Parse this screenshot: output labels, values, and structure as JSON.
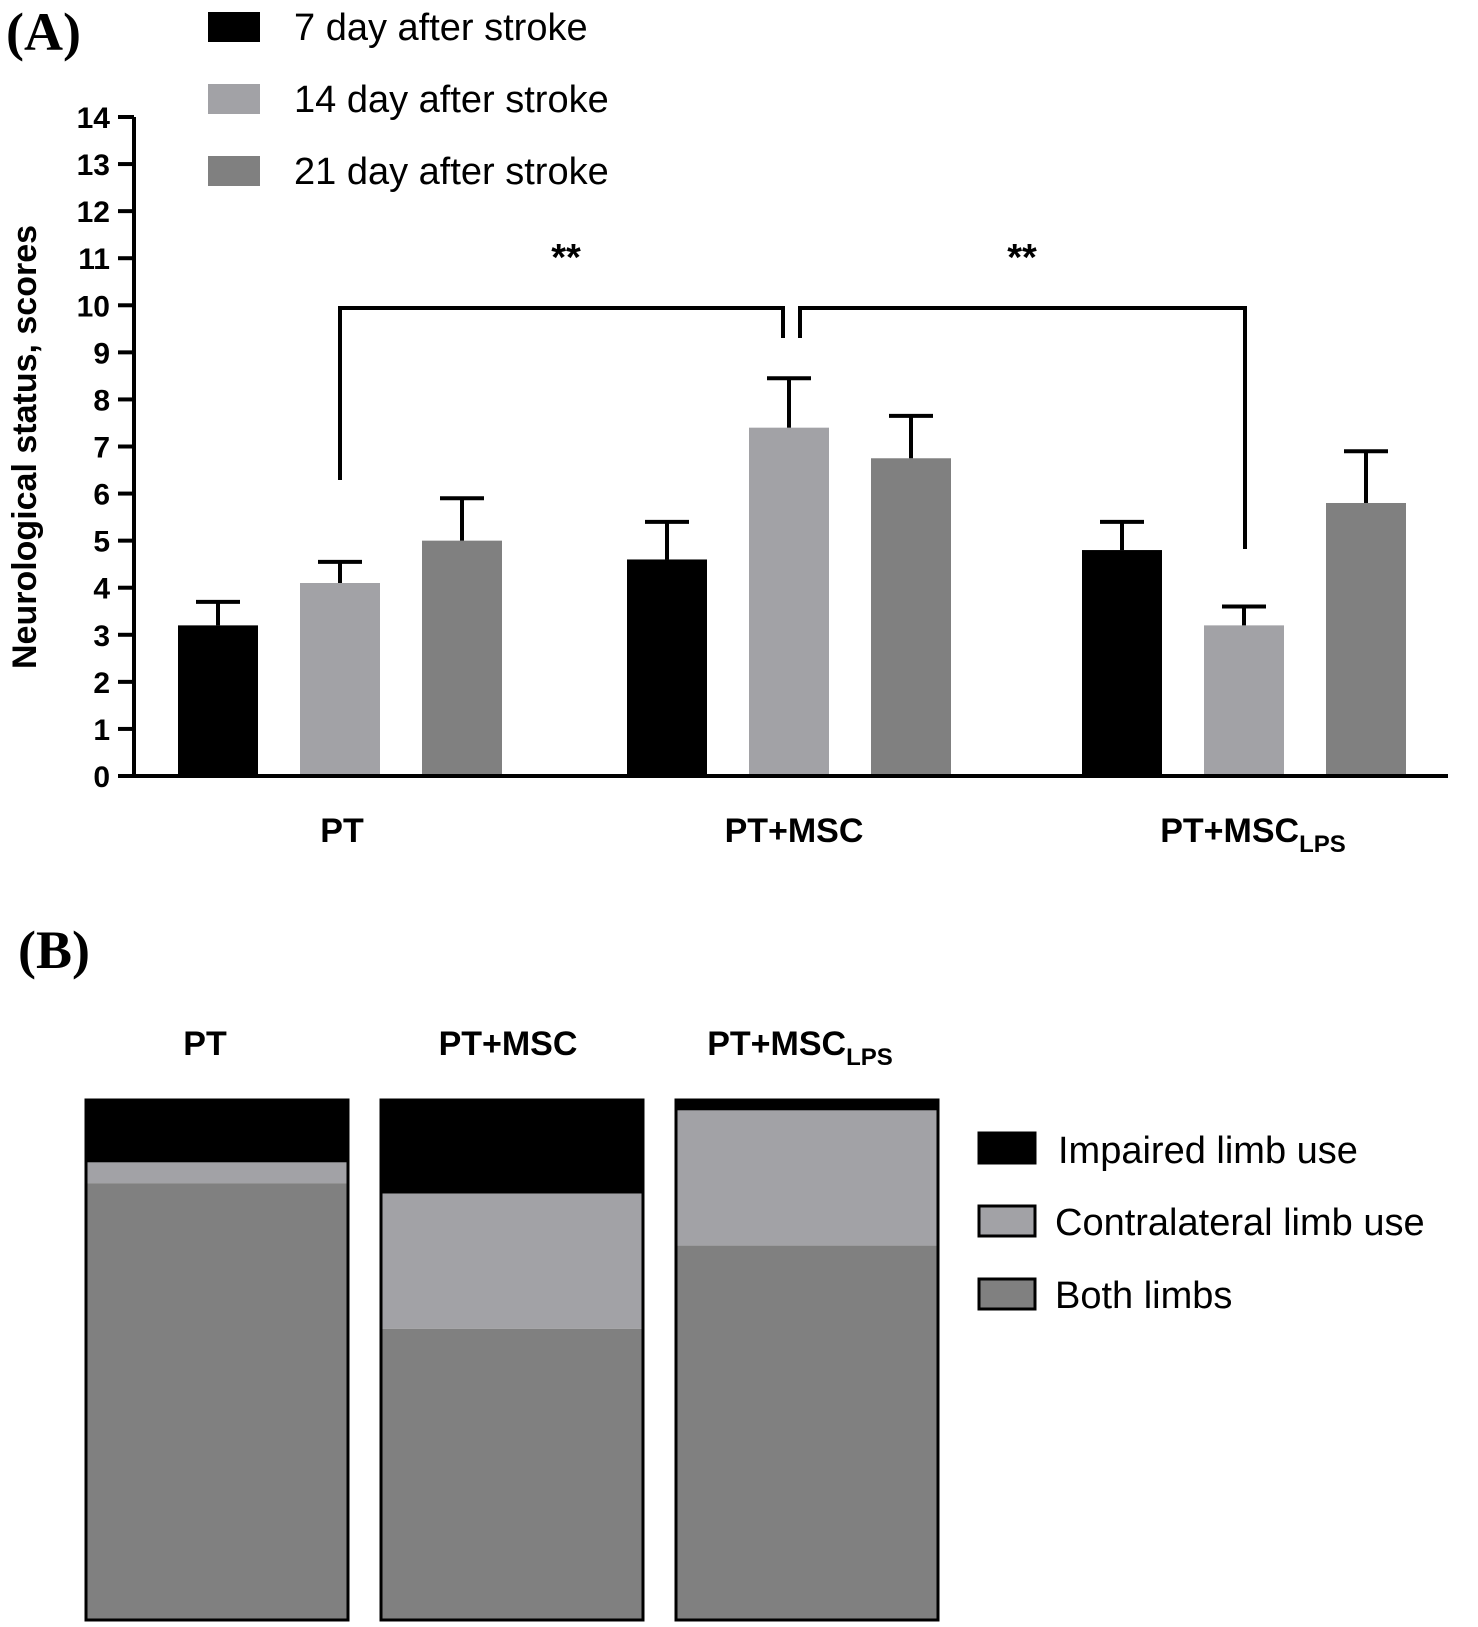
{
  "panel_a_label": "(A)",
  "panel_b_label": "(B)",
  "colors": {
    "day7": "#000000",
    "day14": "#a2a2a6",
    "day21": "#808080",
    "impaired": "#000000",
    "contralateral": "#a2a2a6",
    "both": "#808080"
  },
  "chart_data": [
    {
      "type": "bar",
      "ylabel": "Neurological status, scores",
      "xlabel": "",
      "ylim": [
        0,
        14
      ],
      "yticks": [
        "0",
        "1",
        "2",
        "3",
        "4",
        "5",
        "6",
        "7",
        "8",
        "9",
        "10",
        "11",
        "12",
        "13",
        "14"
      ],
      "categories": [
        {
          "main": "PT",
          "sub": ""
        },
        {
          "main": "PT+MSC",
          "sub": ""
        },
        {
          "main": "PT+MSC",
          "sub": "LPS"
        }
      ],
      "series": [
        {
          "name": "7 day after stroke",
          "color_key": "day7",
          "values": [
            3.2,
            4.6,
            4.8
          ],
          "errors": [
            0.5,
            0.8,
            0.6
          ]
        },
        {
          "name": "14 day after stroke",
          "color_key": "day14",
          "values": [
            4.1,
            7.4,
            3.2
          ],
          "errors": [
            0.45,
            1.05,
            0.4
          ]
        },
        {
          "name": "21 day after stroke",
          "color_key": "day21",
          "values": [
            5.0,
            6.75,
            5.8
          ],
          "errors": [
            0.9,
            0.9,
            1.1
          ]
        }
      ],
      "significance": [
        {
          "from": "PT (14 day)",
          "to": "PT+MSC (14 day)",
          "label": "**"
        },
        {
          "from": "PT+MSC (14 day)",
          "to": "PT+MSC LPS (14 day)",
          "label": "**"
        }
      ]
    },
    {
      "type": "stacked-bar",
      "title": "",
      "categories": [
        {
          "main": "PT",
          "sub": ""
        },
        {
          "main": "PT+MSC",
          "sub": ""
        },
        {
          "main": "PT+MSC",
          "sub": "LPS"
        }
      ],
      "series": [
        {
          "name": "Impaired limb use",
          "color_key": "impaired",
          "values": [
            12,
            18,
            2
          ]
        },
        {
          "name": "Contralateral limb use",
          "color_key": "contralateral",
          "values": [
            4,
            26,
            26
          ]
        },
        {
          "name": "Both limbs",
          "color_key": "both",
          "values": [
            84,
            56,
            72
          ]
        }
      ],
      "unit": "%"
    }
  ]
}
